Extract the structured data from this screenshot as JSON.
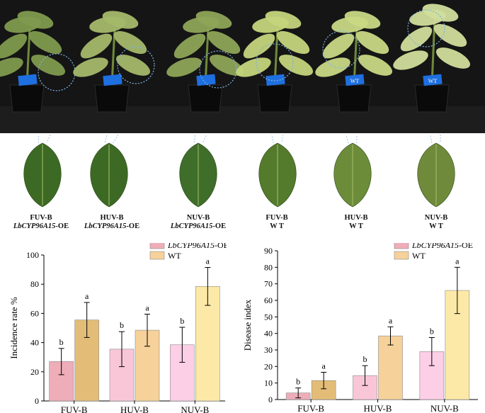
{
  "leaves": [
    {
      "line1": "FUV-B",
      "gene": "LbCYP96A15",
      "suffix": "-OE"
    },
    {
      "line1": "HUV-B",
      "gene": "LbCYP96A15",
      "suffix": "-OE"
    },
    {
      "line1": "NUV-B",
      "gene": "LbCYP96A15",
      "suffix": "-OE"
    },
    {
      "line1": "FUV-B",
      "gene": "",
      "suffix": "W T"
    },
    {
      "line1": "HUV-B",
      "gene": "",
      "suffix": "W T"
    },
    {
      "line1": "NUV-B",
      "gene": "",
      "suffix": "W T"
    }
  ],
  "pot_tags": [
    "",
    "",
    "",
    "",
    "WT",
    "WT"
  ],
  "colors": {
    "oe": [
      "#eeadb8",
      "#f9c6d8",
      "#fccfe6"
    ],
    "wt": [
      "#e3bd77",
      "#f6d19a",
      "#fce9a7"
    ],
    "background_photo": "#121212",
    "tag": "#1e6fe0",
    "leaf_dark": "#3c6a24",
    "leaf_wt": "#6f8a3a"
  },
  "chart_data": [
    {
      "type": "bar",
      "categories": [
        "FUV-B",
        "HUV-B",
        "NUV-B"
      ],
      "ylabel": "Incidence rate %",
      "xlabel": "",
      "ylim": [
        0,
        100
      ],
      "yticks": [
        0,
        20,
        40,
        60,
        80,
        100
      ],
      "legend_position": "top-right",
      "series": [
        {
          "name": "LbCYP96A15",
          "name_suffix": "-OE",
          "values": [
            27,
            35.5,
            38.5
          ],
          "errors": [
            9,
            12,
            12
          ],
          "letters": [
            "b",
            "b",
            "b"
          ]
        },
        {
          "name": "WT",
          "name_suffix": "",
          "values": [
            55.5,
            48.5,
            78.5
          ],
          "errors": [
            12,
            11,
            13
          ],
          "letters": [
            "a",
            "a",
            "a"
          ]
        }
      ]
    },
    {
      "type": "bar",
      "categories": [
        "FUV-B",
        "HUV-B",
        "NUV-B"
      ],
      "ylabel": "Disease index",
      "xlabel": "",
      "ylim": [
        0,
        90
      ],
      "yticks": [
        0,
        10,
        20,
        30,
        40,
        50,
        60,
        70,
        80,
        90
      ],
      "legend_position": "top-right",
      "series": [
        {
          "name": "LbCYP96A15",
          "name_suffix": "-OE",
          "values": [
            4,
            14.5,
            29
          ],
          "errors": [
            3,
            6,
            8.5
          ],
          "letters": [
            "b",
            "b",
            "b"
          ]
        },
        {
          "name": "WT",
          "name_suffix": "",
          "values": [
            11.5,
            38.5,
            66
          ],
          "errors": [
            5,
            5.5,
            14
          ],
          "letters": [
            "a",
            "a",
            "a"
          ]
        }
      ]
    }
  ]
}
